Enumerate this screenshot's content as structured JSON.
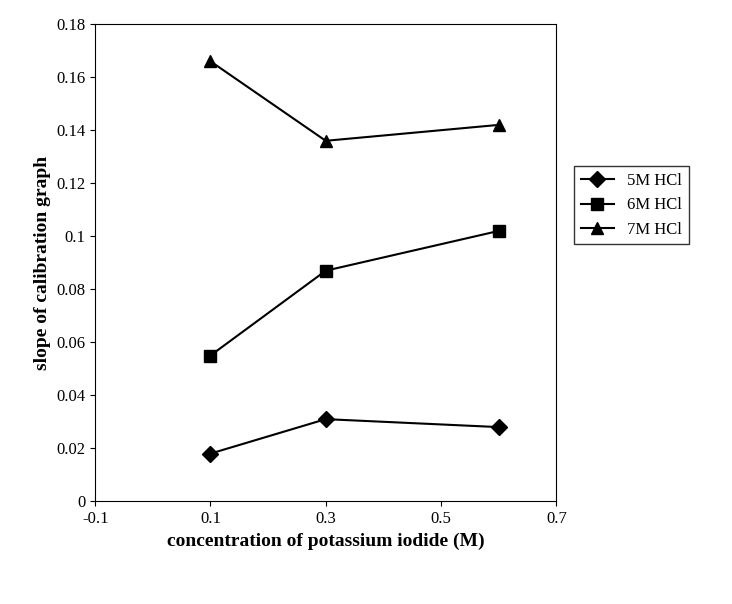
{
  "chart_data": {
    "type": "line",
    "x_label": "concentration of potassium iodide (M)",
    "y_label": "slope of calibration graph",
    "x": [
      0.1,
      0.3,
      0.6
    ],
    "series": [
      {
        "name": "5M HCl",
        "color": "#000000",
        "marker": "diamond",
        "line_style": "solid",
        "values": [
          0.018,
          0.031,
          0.028
        ]
      },
      {
        "name": "6M HCl",
        "color": "#000000",
        "marker": "square",
        "line_style": "solid",
        "values": [
          0.055,
          0.087,
          0.102
        ]
      },
      {
        "name": "7M HCl",
        "color": "#000000",
        "marker": "triangle",
        "line_style": "solid",
        "values": [
          0.166,
          0.136,
          0.142
        ]
      }
    ],
    "xlim": [
      -0.1,
      0.7
    ],
    "xticks": [
      -0.1,
      0.1,
      0.3,
      0.5,
      0.7
    ],
    "ylim": [
      0,
      0.18
    ],
    "yticks": [
      0,
      0.02,
      0.04,
      0.06,
      0.08,
      0.1,
      0.12,
      0.14,
      0.16,
      0.18
    ],
    "legend": "right",
    "grid": false
  }
}
